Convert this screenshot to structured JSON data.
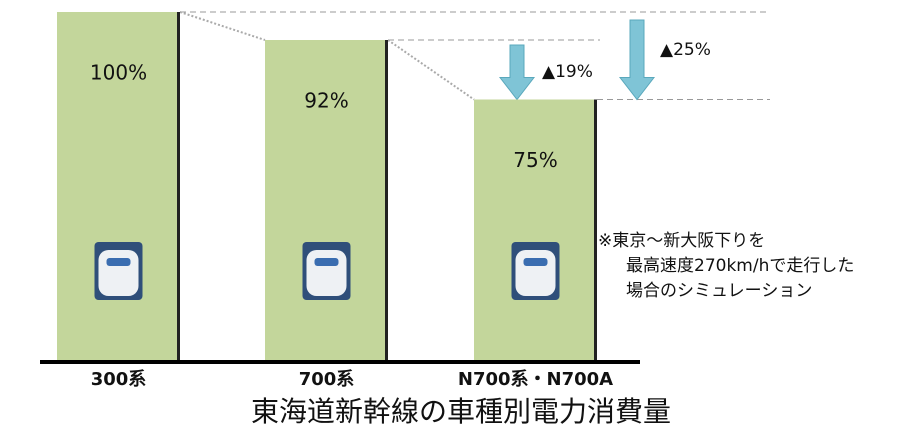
{
  "chart_data": {
    "type": "bar",
    "title": "東海道新幹線の車種別電力消費量",
    "categories": [
      "300系",
      "700系",
      "N700系・N700A"
    ],
    "values": [
      100,
      92,
      75
    ],
    "value_labels": [
      "100%",
      "92%",
      "75%"
    ],
    "color": "#c3d69b",
    "annotations": [
      "▲19%",
      "▲25%"
    ],
    "note": [
      "※東京～新大阪下りを",
      "最高速度270km/hで走行した",
      "場合のシミュレーション"
    ]
  }
}
